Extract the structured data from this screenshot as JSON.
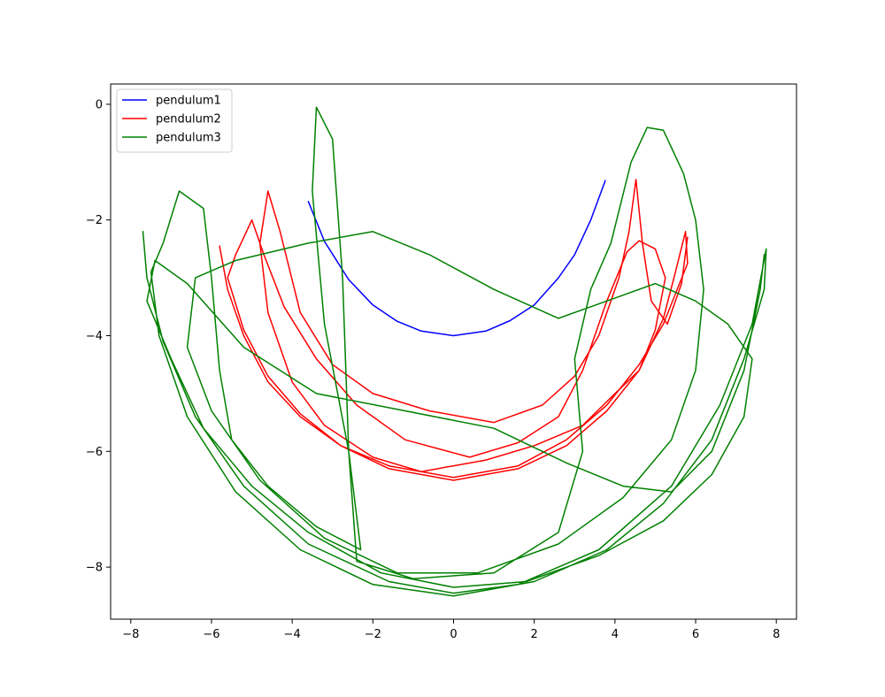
{
  "chart_data": {
    "type": "line",
    "title": "",
    "xlabel": "",
    "ylabel": "",
    "xlim": [
      -8.5,
      8.5
    ],
    "ylim": [
      -8.9,
      0.35
    ],
    "xticks": [
      -8,
      -6,
      -4,
      -2,
      0,
      2,
      4,
      6,
      8
    ],
    "yticks": [
      0,
      -2,
      -4,
      -6,
      -8
    ],
    "xtick_labels": [
      "−8",
      "−6",
      "−4",
      "−2",
      "0",
      "2",
      "4",
      "6",
      "8"
    ],
    "ytick_labels": [
      "0",
      "−2",
      "−4",
      "−6",
      "−8"
    ],
    "grid": false,
    "legend": {
      "position": "top-left"
    },
    "series": [
      {
        "name": "pendulum1",
        "color": "#0000ff",
        "points": [
          [
            -3.6,
            -1.68
          ],
          [
            -3.2,
            -2.37
          ],
          [
            -2.6,
            -3.03
          ],
          [
            -2.0,
            -3.47
          ],
          [
            -1.4,
            -3.75
          ],
          [
            -0.8,
            -3.92
          ],
          [
            0.0,
            -4.0
          ],
          [
            0.8,
            -3.92
          ],
          [
            1.4,
            -3.74
          ],
          [
            2.0,
            -3.47
          ],
          [
            2.6,
            -3.0
          ],
          [
            3.0,
            -2.6
          ],
          [
            3.4,
            -2.0
          ],
          [
            3.76,
            -1.32
          ]
        ]
      },
      {
        "name": "pendulum2",
        "color": "#ff0000",
        "points": [
          [
            -5.8,
            -2.45
          ],
          [
            -5.6,
            -3.2
          ],
          [
            -5.2,
            -4.0
          ],
          [
            -4.6,
            -4.8
          ],
          [
            -3.8,
            -5.4
          ],
          [
            -2.8,
            -5.9
          ],
          [
            -1.6,
            -6.25
          ],
          [
            0.0,
            -6.45
          ],
          [
            1.6,
            -6.25
          ],
          [
            2.8,
            -5.8
          ],
          [
            3.8,
            -5.2
          ],
          [
            4.6,
            -4.5
          ],
          [
            5.2,
            -3.8
          ],
          [
            5.8,
            -2.75
          ],
          [
            5.75,
            -2.2
          ],
          [
            5.5,
            -2.9
          ],
          [
            5.2,
            -3.7
          ],
          [
            4.6,
            -4.6
          ],
          [
            3.8,
            -5.3
          ],
          [
            2.8,
            -5.9
          ],
          [
            1.6,
            -6.3
          ],
          [
            0.0,
            -6.5
          ],
          [
            -1.6,
            -6.3
          ],
          [
            -2.8,
            -5.9
          ],
          [
            -3.8,
            -5.35
          ],
          [
            -4.6,
            -4.7
          ],
          [
            -5.2,
            -3.9
          ],
          [
            -5.6,
            -3.0
          ],
          [
            -5.4,
            -2.6
          ],
          [
            -5.0,
            -2.0
          ],
          [
            -4.7,
            -2.6
          ],
          [
            -4.2,
            -3.5
          ],
          [
            -3.4,
            -4.4
          ],
          [
            -2.4,
            -5.2
          ],
          [
            -1.2,
            -5.8
          ],
          [
            0.4,
            -6.1
          ],
          [
            1.6,
            -5.85
          ],
          [
            2.6,
            -5.4
          ],
          [
            3.2,
            -4.6
          ],
          [
            3.8,
            -3.4
          ],
          [
            4.3,
            -2.55
          ],
          [
            4.6,
            -2.36
          ],
          [
            5.0,
            -2.5
          ],
          [
            5.25,
            -3.0
          ],
          [
            5.0,
            -3.9
          ],
          [
            4.6,
            -4.6
          ],
          [
            4.0,
            -5.0
          ],
          [
            3.2,
            -5.55
          ],
          [
            2.0,
            -5.9
          ],
          [
            0.8,
            -6.15
          ],
          [
            -0.8,
            -6.35
          ],
          [
            -2.0,
            -6.1
          ],
          [
            -3.2,
            -5.55
          ],
          [
            -4.0,
            -4.8
          ],
          [
            -4.6,
            -3.6
          ],
          [
            -4.8,
            -2.4
          ],
          [
            -4.6,
            -1.5
          ],
          [
            -4.3,
            -2.2
          ],
          [
            -3.8,
            -3.6
          ],
          [
            -3.0,
            -4.5
          ],
          [
            -2.0,
            -5.0
          ],
          [
            -0.6,
            -5.3
          ],
          [
            1.0,
            -5.5
          ],
          [
            2.2,
            -5.2
          ],
          [
            3.0,
            -4.7
          ],
          [
            3.6,
            -4.0
          ],
          [
            4.1,
            -3.0
          ],
          [
            4.35,
            -2.2
          ],
          [
            4.52,
            -1.3
          ],
          [
            4.68,
            -2.4
          ],
          [
            4.9,
            -3.4
          ],
          [
            5.3,
            -3.8
          ],
          [
            5.65,
            -3.1
          ],
          [
            5.8,
            -2.3
          ]
        ]
      },
      {
        "name": "pendulum3",
        "color": "#008000",
        "points": [
          [
            -7.7,
            -2.2
          ],
          [
            -7.6,
            -3.0
          ],
          [
            -7.2,
            -4.1
          ],
          [
            -6.4,
            -5.4
          ],
          [
            -5.2,
            -6.6
          ],
          [
            -3.6,
            -7.6
          ],
          [
            -1.6,
            -8.25
          ],
          [
            0.0,
            -8.45
          ],
          [
            1.6,
            -8.3
          ],
          [
            3.6,
            -7.7
          ],
          [
            5.4,
            -6.6
          ],
          [
            6.6,
            -5.2
          ],
          [
            7.4,
            -3.8
          ],
          [
            7.75,
            -2.5
          ],
          [
            7.7,
            -3.2
          ],
          [
            7.2,
            -4.4
          ],
          [
            6.4,
            -5.8
          ],
          [
            5.2,
            -6.9
          ],
          [
            3.8,
            -7.7
          ],
          [
            2.0,
            -8.25
          ],
          [
            0.0,
            -8.5
          ],
          [
            -2.0,
            -8.3
          ],
          [
            -3.8,
            -7.7
          ],
          [
            -5.4,
            -6.7
          ],
          [
            -6.6,
            -5.4
          ],
          [
            -7.3,
            -4.0
          ],
          [
            -7.5,
            -2.9
          ],
          [
            -7.2,
            -2.4
          ],
          [
            -6.8,
            -1.5
          ],
          [
            -6.2,
            -1.8
          ],
          [
            -6.0,
            -3.0
          ],
          [
            -5.8,
            -4.6
          ],
          [
            -5.5,
            -5.8
          ],
          [
            -4.6,
            -6.6
          ],
          [
            -3.4,
            -7.3
          ],
          [
            -2.3,
            -7.7
          ],
          [
            -2.6,
            -6.0
          ],
          [
            -3.2,
            -3.8
          ],
          [
            -3.5,
            -1.5
          ],
          [
            -3.4,
            -0.05
          ],
          [
            -3.0,
            -0.6
          ],
          [
            -2.75,
            -3.0
          ],
          [
            -2.6,
            -6.0
          ],
          [
            -2.4,
            -7.9
          ],
          [
            -1.0,
            -8.2
          ],
          [
            1.0,
            -8.1
          ],
          [
            2.6,
            -7.4
          ],
          [
            3.2,
            -6.0
          ],
          [
            3.0,
            -4.4
          ],
          [
            3.4,
            -3.2
          ],
          [
            3.9,
            -2.4
          ],
          [
            4.4,
            -1.0
          ],
          [
            4.8,
            -0.4
          ],
          [
            5.2,
            -0.45
          ],
          [
            5.7,
            -1.2
          ],
          [
            6.0,
            -2.0
          ],
          [
            6.2,
            -3.2
          ],
          [
            6.0,
            -4.6
          ],
          [
            5.4,
            -5.8
          ],
          [
            4.2,
            -6.8
          ],
          [
            2.6,
            -7.6
          ],
          [
            0.6,
            -8.1
          ],
          [
            -1.4,
            -8.1
          ],
          [
            -3.2,
            -7.5
          ],
          [
            -4.8,
            -6.5
          ],
          [
            -6.0,
            -5.3
          ],
          [
            -6.6,
            -4.2
          ],
          [
            -6.4,
            -3.0
          ],
          [
            -5.4,
            -2.7
          ],
          [
            -3.6,
            -2.4
          ],
          [
            -2.0,
            -2.2
          ],
          [
            -0.6,
            -2.6
          ],
          [
            1.0,
            -3.2
          ],
          [
            2.6,
            -3.7
          ],
          [
            3.8,
            -3.4
          ],
          [
            5.0,
            -3.1
          ],
          [
            6.0,
            -3.4
          ],
          [
            6.8,
            -3.8
          ],
          [
            7.4,
            -4.4
          ],
          [
            7.2,
            -5.4
          ],
          [
            6.4,
            -6.4
          ],
          [
            5.2,
            -7.2
          ],
          [
            3.6,
            -7.8
          ],
          [
            1.8,
            -8.25
          ],
          [
            0.0,
            -8.35
          ],
          [
            -1.8,
            -8.1
          ],
          [
            -3.6,
            -7.4
          ],
          [
            -5.0,
            -6.6
          ],
          [
            -6.2,
            -5.6
          ],
          [
            -7.0,
            -4.4
          ],
          [
            -7.6,
            -3.4
          ],
          [
            -7.4,
            -2.7
          ],
          [
            -6.6,
            -3.1
          ],
          [
            -5.2,
            -4.2
          ],
          [
            -3.4,
            -5.0
          ],
          [
            -1.2,
            -5.3
          ],
          [
            1.0,
            -5.6
          ],
          [
            2.8,
            -6.2
          ],
          [
            4.2,
            -6.6
          ],
          [
            5.4,
            -6.7
          ],
          [
            6.4,
            -6.0
          ],
          [
            7.2,
            -4.6
          ],
          [
            7.6,
            -3.2
          ],
          [
            7.7,
            -2.6
          ]
        ]
      }
    ]
  }
}
